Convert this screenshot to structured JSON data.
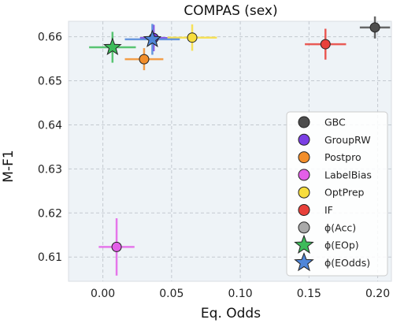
{
  "chart_data": {
    "type": "scatter",
    "title": "COMPAS (sex)",
    "xlabel": "Eq. Odds",
    "ylabel": "M-F1",
    "xlim": [
      -0.025,
      0.21
    ],
    "ylim": [
      0.6045,
      0.6635
    ],
    "xticks": [
      0.0,
      0.05,
      0.1,
      0.15,
      0.2
    ],
    "xtick_labels": [
      "0.00",
      "0.05",
      "0.10",
      "0.15",
      "0.20"
    ],
    "yticks": [
      0.61,
      0.62,
      0.63,
      0.64,
      0.65,
      0.66
    ],
    "ytick_labels": [
      "0.61",
      "0.62",
      "0.63",
      "0.64",
      "0.65",
      "0.66"
    ],
    "grid": true,
    "legend_position": "lower-right",
    "series": [
      {
        "name": "GBC",
        "color": "#4d4d4d",
        "marker": "circle",
        "points": [
          {
            "x": 0.198,
            "y": 0.6621,
            "xerr": 0.011,
            "yerr": 0.0025
          }
        ]
      },
      {
        "name": "GroupRW",
        "color": "#7b3fe4",
        "marker": "circle",
        "points": [
          {
            "x": 0.037,
            "y": 0.6597,
            "xerr": 0.01,
            "yerr": 0.003
          }
        ]
      },
      {
        "name": "Postpro",
        "color": "#f28e2b",
        "marker": "circle",
        "points": [
          {
            "x": 0.03,
            "y": 0.6549,
            "xerr": 0.014,
            "yerr": 0.0025
          }
        ]
      },
      {
        "name": "LabelBias",
        "color": "#e35fe8",
        "marker": "circle",
        "points": [
          {
            "x": 0.01,
            "y": 0.6123,
            "xerr": 0.013,
            "yerr": 0.0065
          }
        ]
      },
      {
        "name": "OptPrep",
        "color": "#f7dd3d",
        "marker": "circle",
        "points": [
          {
            "x": 0.065,
            "y": 0.6598,
            "xerr": 0.018,
            "yerr": 0.003
          }
        ]
      },
      {
        "name": "IF",
        "color": "#e8403a",
        "marker": "circle",
        "points": [
          {
            "x": 0.162,
            "y": 0.6583,
            "xerr": 0.015,
            "yerr": 0.0035
          }
        ]
      },
      {
        "name": "ϕ(Acc)",
        "color": "#a9a9a9",
        "marker": "circle",
        "points": []
      },
      {
        "name": "ϕ(EOp)",
        "color": "#3dbb5a",
        "marker": "star",
        "points": [
          {
            "x": 0.007,
            "y": 0.6576,
            "xerr": 0.017,
            "yerr": 0.0035
          }
        ]
      },
      {
        "name": "ϕ(EOdds)",
        "color": "#4f86d9",
        "marker": "star",
        "points": [
          {
            "x": 0.036,
            "y": 0.6594,
            "xerr": 0.02,
            "yerr": 0.0035
          }
        ]
      }
    ]
  }
}
